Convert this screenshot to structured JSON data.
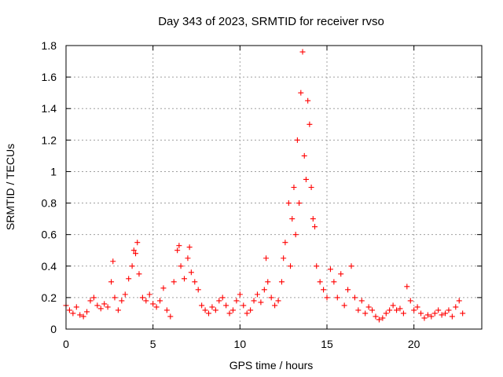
{
  "chart_data": {
    "type": "scatter",
    "title": "Day 343 of 2023, SRMTID for receiver rvso",
    "xlabel": "GPS time / hours",
    "ylabel": "SRMTID / TECUs",
    "xlim": [
      0,
      23.9
    ],
    "ylim": [
      0,
      1.8
    ],
    "xticks": [
      0,
      5,
      10,
      15,
      20
    ],
    "xtick_labels": [
      "0",
      "5",
      "10",
      "15",
      "20"
    ],
    "yticks": [
      0,
      0.2,
      0.4,
      0.6,
      0.8,
      1.0,
      1.2,
      1.4,
      1.6,
      1.8
    ],
    "ytick_labels": [
      "0",
      "0.2",
      "0.4",
      "0.6",
      "0.8",
      "1",
      "1.2",
      "1.4",
      "1.6",
      "1.8"
    ],
    "grid": true,
    "marker": "+",
    "color": "#ff0000",
    "series": [
      {
        "name": "SRMTID",
        "x": [
          0.0,
          0.2,
          0.4,
          0.6,
          0.8,
          1.0,
          1.2,
          1.4,
          1.6,
          1.8,
          2.0,
          2.2,
          2.4,
          2.6,
          2.7,
          2.8,
          3.0,
          3.2,
          3.4,
          3.6,
          3.8,
          3.9,
          4.0,
          4.1,
          4.2,
          4.4,
          4.6,
          4.8,
          5.0,
          5.2,
          5.4,
          5.6,
          5.8,
          6.0,
          6.2,
          6.4,
          6.5,
          6.6,
          6.8,
          7.0,
          7.1,
          7.2,
          7.4,
          7.6,
          7.8,
          8.0,
          8.2,
          8.4,
          8.6,
          8.8,
          9.0,
          9.2,
          9.4,
          9.6,
          9.8,
          10.0,
          10.2,
          10.4,
          10.6,
          10.8,
          11.0,
          11.2,
          11.4,
          11.5,
          11.6,
          11.8,
          12.0,
          12.2,
          12.4,
          12.5,
          12.6,
          12.8,
          12.9,
          13.0,
          13.1,
          13.2,
          13.3,
          13.4,
          13.5,
          13.6,
          13.7,
          13.8,
          13.9,
          14.0,
          14.1,
          14.2,
          14.3,
          14.4,
          14.6,
          14.8,
          15.0,
          15.2,
          15.4,
          15.6,
          15.8,
          16.0,
          16.2,
          16.4,
          16.6,
          16.8,
          17.0,
          17.2,
          17.4,
          17.6,
          17.8,
          18.0,
          18.2,
          18.4,
          18.6,
          18.8,
          19.0,
          19.2,
          19.4,
          19.6,
          19.8,
          20.0,
          20.2,
          20.4,
          20.6,
          20.8,
          21.0,
          21.2,
          21.4,
          21.6,
          21.8,
          22.0,
          22.2,
          22.4,
          22.6,
          22.8
        ],
        "y": [
          0.15,
          0.12,
          0.1,
          0.14,
          0.09,
          0.08,
          0.11,
          0.18,
          0.2,
          0.15,
          0.13,
          0.16,
          0.14,
          0.3,
          0.43,
          0.2,
          0.12,
          0.18,
          0.22,
          0.32,
          0.4,
          0.5,
          0.48,
          0.55,
          0.35,
          0.2,
          0.18,
          0.22,
          0.16,
          0.14,
          0.18,
          0.26,
          0.12,
          0.08,
          0.3,
          0.5,
          0.53,
          0.4,
          0.32,
          0.45,
          0.52,
          0.36,
          0.3,
          0.25,
          0.15,
          0.12,
          0.1,
          0.14,
          0.12,
          0.18,
          0.2,
          0.15,
          0.1,
          0.12,
          0.18,
          0.22,
          0.15,
          0.1,
          0.12,
          0.18,
          0.22,
          0.17,
          0.25,
          0.45,
          0.3,
          0.2,
          0.15,
          0.18,
          0.3,
          0.45,
          0.55,
          0.8,
          0.4,
          0.7,
          0.9,
          0.6,
          1.2,
          0.8,
          1.5,
          1.76,
          1.1,
          0.95,
          1.45,
          1.3,
          0.9,
          0.7,
          0.65,
          0.4,
          0.3,
          0.25,
          0.2,
          0.38,
          0.3,
          0.2,
          0.35,
          0.15,
          0.25,
          0.4,
          0.2,
          0.12,
          0.18,
          0.1,
          0.14,
          0.12,
          0.08,
          0.06,
          0.07,
          0.1,
          0.12,
          0.15,
          0.12,
          0.13,
          0.1,
          0.27,
          0.18,
          0.12,
          0.14,
          0.1,
          0.07,
          0.09,
          0.08,
          0.1,
          0.12,
          0.09,
          0.1,
          0.12,
          0.08,
          0.14,
          0.18,
          0.1
        ]
      }
    ]
  }
}
